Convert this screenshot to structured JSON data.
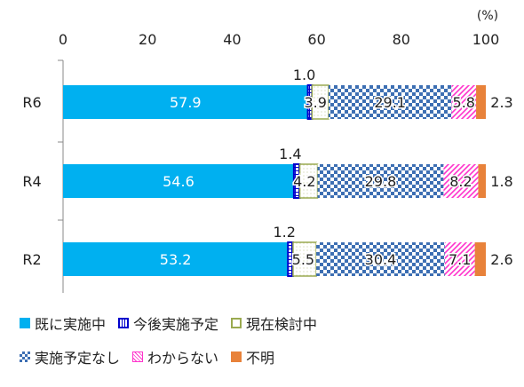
{
  "chart_data": {
    "type": "bar",
    "orientation": "horizontal",
    "stacked": true,
    "unit_label": "(%)",
    "xlim": [
      0,
      100
    ],
    "xticks": [
      0,
      20,
      40,
      60,
      80,
      100
    ],
    "categories": [
      "R6",
      "R4",
      "R2"
    ],
    "series": [
      {
        "name": "既に実施中",
        "values": [
          57.9,
          54.6,
          53.2
        ],
        "color": "#00b0f0",
        "pattern": "solid"
      },
      {
        "name": "今後実施予定",
        "values": [
          1.0,
          1.4,
          1.2
        ],
        "color": "#0000cc",
        "pattern": "grid"
      },
      {
        "name": "現在検討中",
        "values": [
          3.9,
          4.2,
          5.5
        ],
        "color": "#9aaa50",
        "pattern": "outline"
      },
      {
        "name": "実施予定なし",
        "values": [
          29.1,
          29.8,
          30.4
        ],
        "color": "#3d6fb3",
        "pattern": "checker"
      },
      {
        "name": "わからない",
        "values": [
          5.8,
          8.2,
          7.1
        ],
        "color": "#ff33cc",
        "pattern": "diagonal"
      },
      {
        "name": "不明",
        "values": [
          2.3,
          1.8,
          2.6
        ],
        "color": "#e8823a",
        "pattern": "solid"
      }
    ],
    "legend_position": "bottom",
    "grid": false
  }
}
